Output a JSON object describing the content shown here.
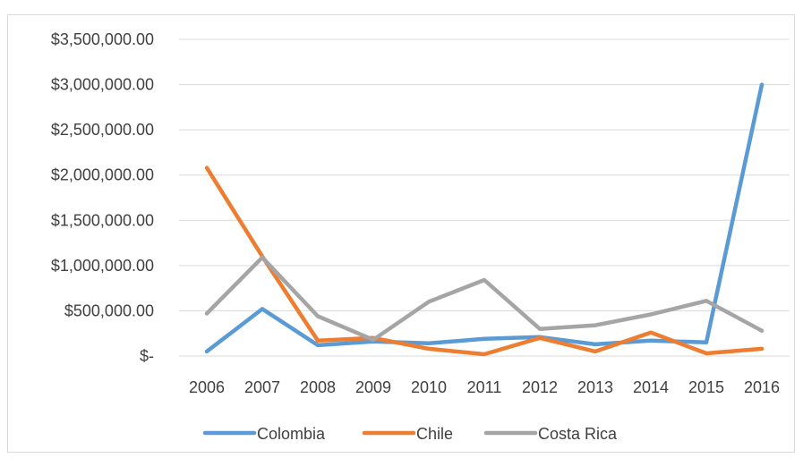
{
  "chart_data": {
    "type": "line",
    "categories": [
      "2006",
      "2007",
      "2008",
      "2009",
      "2010",
      "2011",
      "2012",
      "2013",
      "2014",
      "2015",
      "2016"
    ],
    "ylim": [
      0,
      3500000
    ],
    "y_ticks": [
      0,
      500000,
      1000000,
      1500000,
      2000000,
      2500000,
      3000000,
      3500000
    ],
    "y_tick_labels": [
      "$-",
      "$500,000.00",
      "$1,000,000.00",
      "$1,500,000.00",
      "$2,000,000.00",
      "$2,500,000.00",
      "$3,000,000.00",
      "$3,500,000.00"
    ],
    "grid": true,
    "legend_position": "bottom",
    "series": [
      {
        "name": "Colombia",
        "color": "#5b9bd5",
        "values": [
          50000,
          520000,
          120000,
          160000,
          140000,
          190000,
          210000,
          130000,
          170000,
          150000,
          3000000
        ]
      },
      {
        "name": "Chile",
        "color": "#ed7d31",
        "values": [
          2080000,
          1100000,
          170000,
          200000,
          80000,
          20000,
          200000,
          50000,
          260000,
          30000,
          80000
        ]
      },
      {
        "name": "Costa Rica",
        "color": "#a5a5a5",
        "values": [
          470000,
          1090000,
          440000,
          180000,
          600000,
          840000,
          300000,
          340000,
          460000,
          610000,
          280000
        ]
      }
    ]
  }
}
